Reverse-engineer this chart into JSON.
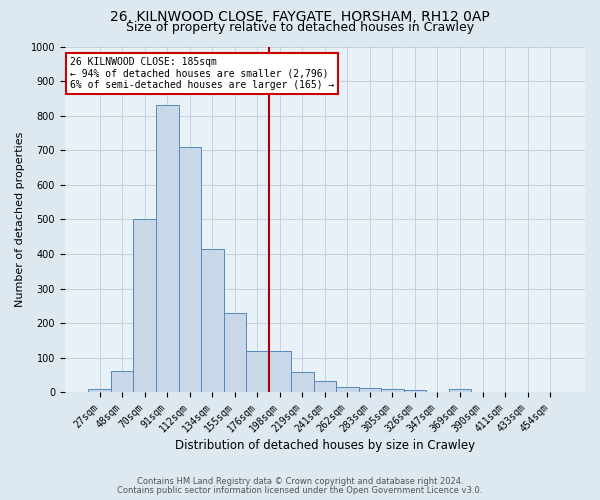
{
  "title1": "26, KILNWOOD CLOSE, FAYGATE, HORSHAM, RH12 0AP",
  "title2": "Size of property relative to detached houses in Crawley",
  "xlabel": "Distribution of detached houses by size in Crawley",
  "ylabel": "Number of detached properties",
  "bar_labels": [
    "27sqm",
    "48sqm",
    "70sqm",
    "91sqm",
    "112sqm",
    "134sqm",
    "155sqm",
    "176sqm",
    "198sqm",
    "219sqm",
    "241sqm",
    "262sqm",
    "283sqm",
    "305sqm",
    "326sqm",
    "347sqm",
    "369sqm",
    "390sqm",
    "411sqm",
    "433sqm",
    "454sqm"
  ],
  "bar_values": [
    8,
    60,
    500,
    830,
    710,
    415,
    230,
    120,
    120,
    58,
    33,
    15,
    13,
    10,
    5,
    0,
    8,
    0,
    0,
    0,
    0
  ],
  "bar_color": "#c8d8e8",
  "bar_edge_color": "#5588bb",
  "vline_color": "#aa0000",
  "annotation_title": "26 KILNWOOD CLOSE: 185sqm",
  "annotation_line1": "← 94% of detached houses are smaller (2,796)",
  "annotation_line2": "6% of semi-detached houses are larger (165) →",
  "annotation_box_color": "white",
  "annotation_box_edge_color": "#cc0000",
  "footnote1": "Contains HM Land Registry data © Crown copyright and database right 2024.",
  "footnote2": "Contains public sector information licensed under the Open Government Licence v3.0.",
  "bg_color": "#dde8f0",
  "plot_bg_color": "#e8f0f8",
  "ylim": [
    0,
    1000
  ],
  "yticks": [
    0,
    100,
    200,
    300,
    400,
    500,
    600,
    700,
    800,
    900,
    1000
  ],
  "title1_fontsize": 10,
  "title2_fontsize": 9,
  "xlabel_fontsize": 8.5,
  "ylabel_fontsize": 8,
  "tick_fontsize": 7,
  "footnote_fontsize": 6,
  "ann_fontsize": 7,
  "vline_index": 7.5
}
